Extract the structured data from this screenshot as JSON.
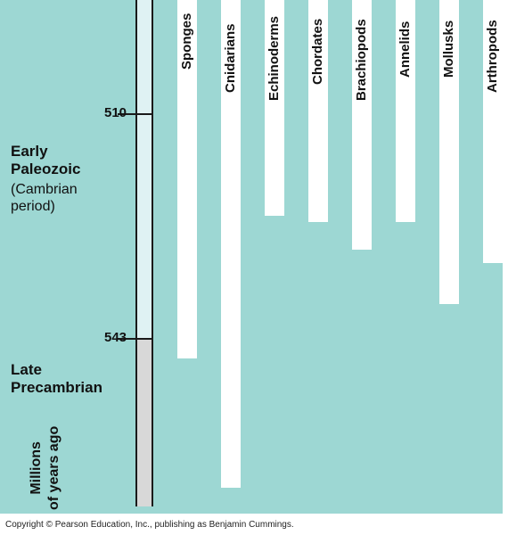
{
  "eras": {
    "early": {
      "name_line1": "Early",
      "name_line2": "Paleozoic",
      "sub_line1": "(Cambrian",
      "sub_line2": "period)"
    },
    "late": {
      "name_line1": "Late",
      "name_line2": "Precambrian"
    }
  },
  "ticks": {
    "upper": "510",
    "lower": "543"
  },
  "axis_label": {
    "line1": "Millions",
    "line2": "of years ago"
  },
  "phyla": [
    {
      "name": "Sponges",
      "first_appearance_mya": 546
    },
    {
      "name": "Cnidarians",
      "first_appearance_mya": 565
    },
    {
      "name": "Echinoderms",
      "first_appearance_mya": 525
    },
    {
      "name": "Chordates",
      "first_appearance_mya": 526
    },
    {
      "name": "Brachiopods",
      "first_appearance_mya": 530
    },
    {
      "name": "Annelids",
      "first_appearance_mya": 526
    },
    {
      "name": "Mollusks",
      "first_appearance_mya": 538
    },
    {
      "name": "Arthropods",
      "first_appearance_mya": 532
    }
  ],
  "copyright": "Copyright © Pearson Education, Inc., publishing as Benjamin Cummings.",
  "colors": {
    "background": "#9dd7d3",
    "early_band": "#dff2f3",
    "late_band": "#d8d8d8",
    "bar": "#ffffff"
  }
}
